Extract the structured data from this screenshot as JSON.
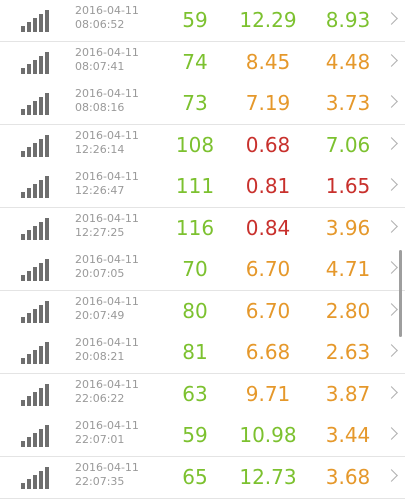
{
  "colors": {
    "good": "#7cc12f",
    "medium": "#e5982b",
    "bad": "#c8302c"
  },
  "icons": {
    "signal": "signal-bars-icon",
    "chevron": "chevron-right-icon"
  },
  "rows": [
    {
      "date": "2016-04-11",
      "time": "08:06:52",
      "v1": "59",
      "v2": "12.29",
      "v3": "8.93",
      "c1": "good",
      "c2": "good",
      "c3": "good"
    },
    {
      "date": "2016-04-11",
      "time": "08:07:41",
      "v1": "74",
      "v2": "8.45",
      "v3": "4.48",
      "c1": "good",
      "c2": "medium",
      "c3": "medium"
    },
    {
      "date": "2016-04-11",
      "time": "08:08:16",
      "v1": "73",
      "v2": "7.19",
      "v3": "3.73",
      "c1": "good",
      "c2": "medium",
      "c3": "medium"
    },
    {
      "date": "2016-04-11",
      "time": "12:26:14",
      "v1": "108",
      "v2": "0.68",
      "v3": "7.06",
      "c1": "good",
      "c2": "bad",
      "c3": "good"
    },
    {
      "date": "2016-04-11",
      "time": "12:26:47",
      "v1": "111",
      "v2": "0.81",
      "v3": "1.65",
      "c1": "good",
      "c2": "bad",
      "c3": "bad"
    },
    {
      "date": "2016-04-11",
      "time": "12:27:25",
      "v1": "116",
      "v2": "0.84",
      "v3": "3.96",
      "c1": "good",
      "c2": "bad",
      "c3": "medium"
    },
    {
      "date": "2016-04-11",
      "time": "20:07:05",
      "v1": "70",
      "v2": "6.70",
      "v3": "4.71",
      "c1": "good",
      "c2": "medium",
      "c3": "medium"
    },
    {
      "date": "2016-04-11",
      "time": "20:07:49",
      "v1": "80",
      "v2": "6.70",
      "v3": "2.80",
      "c1": "good",
      "c2": "medium",
      "c3": "medium"
    },
    {
      "date": "2016-04-11",
      "time": "20:08:21",
      "v1": "81",
      "v2": "6.68",
      "v3": "2.63",
      "c1": "good",
      "c2": "medium",
      "c3": "medium"
    },
    {
      "date": "2016-04-11",
      "time": "22:06:22",
      "v1": "63",
      "v2": "9.71",
      "v3": "3.87",
      "c1": "good",
      "c2": "medium",
      "c3": "medium"
    },
    {
      "date": "2016-04-11",
      "time": "22:07:01",
      "v1": "59",
      "v2": "10.98",
      "v3": "3.44",
      "c1": "good",
      "c2": "good",
      "c3": "medium"
    },
    {
      "date": "2016-04-11",
      "time": "22:07:35",
      "v1": "65",
      "v2": "12.73",
      "v3": "3.68",
      "c1": "good",
      "c2": "good",
      "c3": "medium"
    }
  ]
}
